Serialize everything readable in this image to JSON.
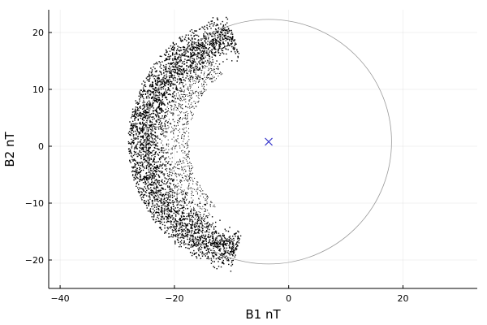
{
  "chart_data": {
    "type": "scatter",
    "title": "",
    "xlabel": "B1 nT",
    "ylabel": "B2 nT",
    "xlim": [
      -42,
      33
    ],
    "ylim": [
      -25,
      24
    ],
    "xticks": [
      -40,
      -20,
      0,
      20
    ],
    "yticks": [
      -20,
      -10,
      0,
      10,
      20
    ],
    "xtick_labels": [
      "−40",
      "−20",
      "0",
      "20"
    ],
    "ytick_labels": [
      "−20",
      "−10",
      "0",
      "10",
      "20"
    ],
    "grid": true,
    "legend": "none",
    "series": [
      {
        "kind": "scatter-dense-band",
        "color": "#000000",
        "description_points_approx": [
          [
            -10,
            21
          ],
          [
            -12,
            21.5
          ],
          [
            -15,
            20.5
          ],
          [
            -18,
            19
          ],
          [
            -20,
            17
          ],
          [
            -22,
            14
          ],
          [
            -23.5,
            10
          ],
          [
            -25,
            6
          ],
          [
            -25.5,
            2
          ],
          [
            -26,
            -2
          ],
          [
            -25.5,
            -6
          ],
          [
            -24.5,
            -10
          ],
          [
            -23,
            -14
          ],
          [
            -21,
            -17
          ],
          [
            -18,
            -20
          ],
          [
            -14,
            -22
          ],
          [
            -12,
            -22
          ]
        ]
      },
      {
        "kind": "circle",
        "color": "#999999",
        "center": [
          -3.5,
          0.8
        ],
        "radius": 21.5
      },
      {
        "kind": "marker-x",
        "color": "#3b3bcc",
        "point": [
          -3.5,
          0.8
        ]
      }
    ]
  }
}
